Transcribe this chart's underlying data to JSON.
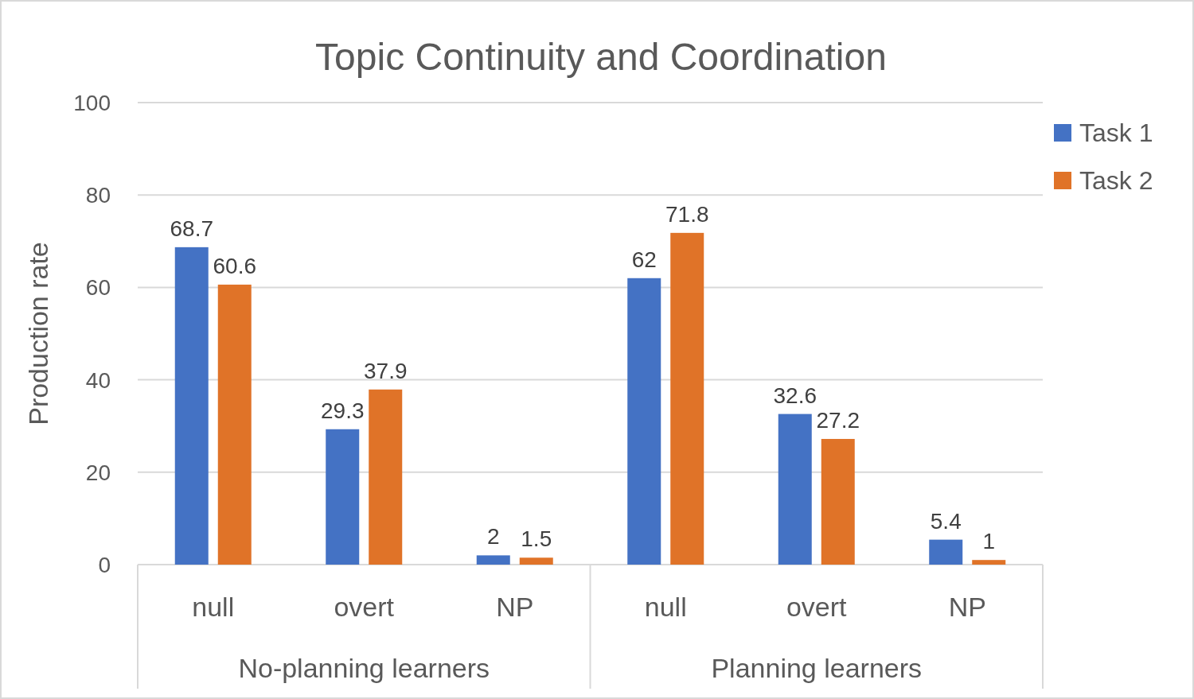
{
  "chart_data": {
    "type": "bar",
    "title": "Topic Continuity and Coordination",
    "ylabel": "Production rate",
    "categories": [
      "null",
      "overt",
      "NP",
      "null",
      "overt",
      "NP"
    ],
    "series": [
      {
        "name": "Task 1",
        "color": "#4472c4",
        "values": [
          68.7,
          29.3,
          2,
          62,
          32.6,
          5.4
        ]
      },
      {
        "name": "Task 2",
        "color": "#e07328",
        "values": [
          60.6,
          37.9,
          1.5,
          71.8,
          27.2,
          1
        ]
      }
    ],
    "annotations": [
      "No-planning learners",
      "Planning learners"
    ],
    "ylim": [
      0,
      100
    ],
    "yticks": [
      0,
      20,
      40,
      60,
      80,
      100
    ],
    "grid": "y",
    "legend": "top right",
    "data_labels": true
  }
}
